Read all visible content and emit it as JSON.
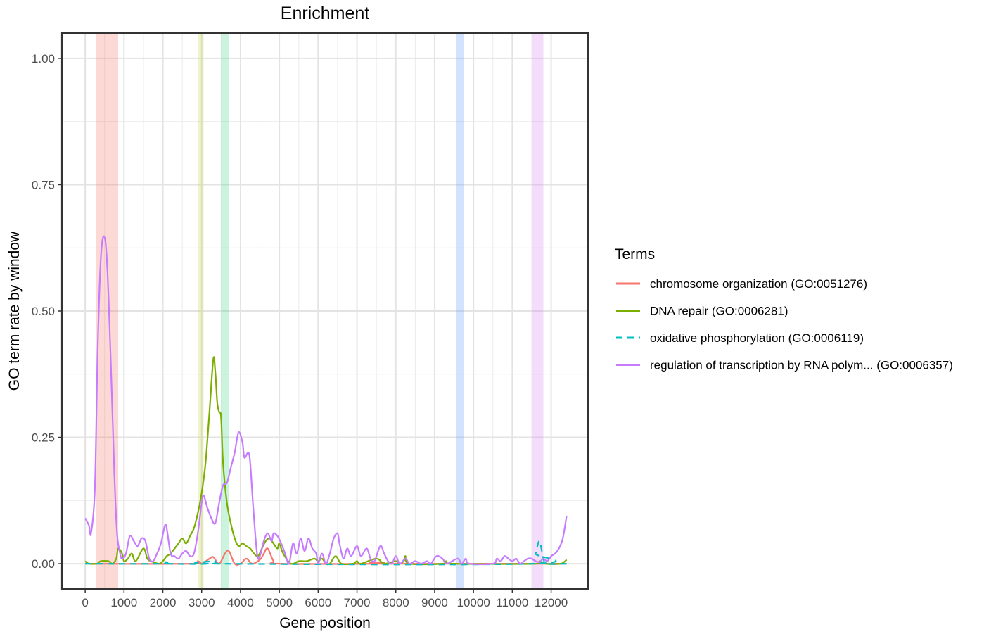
{
  "chart_data": {
    "type": "line",
    "title": "Enrichment",
    "xlabel": "Gene position",
    "ylabel": "GO term rate by window",
    "xlim": [
      -600,
      12950
    ],
    "ylim": [
      -0.05,
      1.05
    ],
    "x_ticks": [
      0,
      1000,
      2000,
      3000,
      4000,
      5000,
      6000,
      7000,
      8000,
      9000,
      10000,
      11000,
      12000
    ],
    "x_tick_labels": [
      "0",
      "1000",
      "2000",
      "3000",
      "4000",
      "5000",
      "6000",
      "7000",
      "8000",
      "9000",
      "10000",
      "11000",
      "12000"
    ],
    "y_ticks": [
      0,
      0.25,
      0.5,
      0.75,
      1.0
    ],
    "y_tick_labels": [
      "0.00",
      "0.25",
      "0.50",
      "0.75",
      "1.00"
    ],
    "grid": true,
    "legend": {
      "title": "Terms",
      "position": "right"
    },
    "highlight_bands": [
      {
        "x0": 280,
        "x1": 850,
        "color": "#f8766d"
      },
      {
        "x0": 2900,
        "x1": 3050,
        "color": "#c6d94a"
      },
      {
        "x0": 3500,
        "x1": 3700,
        "color": "#3fd98a"
      },
      {
        "x0": 9550,
        "x1": 9750,
        "color": "#619cff"
      },
      {
        "x0": 11500,
        "x1": 11800,
        "color": "#d986f0"
      }
    ],
    "series": [
      {
        "name": "chromosome organization (GO:0051276)",
        "color": "#f8766d",
        "dashed": false,
        "points": [
          [
            0,
            0
          ],
          [
            2700,
            0
          ],
          [
            2900,
            0.005
          ],
          [
            3000,
            0
          ],
          [
            3200,
            0.01
          ],
          [
            3300,
            0.013
          ],
          [
            3450,
            0
          ],
          [
            3600,
            0.02
          ],
          [
            3700,
            0.025
          ],
          [
            3850,
            0
          ],
          [
            4000,
            0
          ],
          [
            4150,
            0.01
          ],
          [
            4300,
            0
          ],
          [
            4500,
            0.008
          ],
          [
            4600,
            0.02
          ],
          [
            4700,
            0.03
          ],
          [
            4850,
            0.005
          ],
          [
            5000,
            0
          ],
          [
            7500,
            0
          ],
          [
            7600,
            0.003
          ],
          [
            7700,
            0
          ],
          [
            12400,
            0
          ]
        ]
      },
      {
        "name": "DNA repair (GO:0006281)",
        "color": "#7cae00",
        "dashed": false,
        "points": [
          [
            0,
            0.005
          ],
          [
            100,
            0
          ],
          [
            300,
            0
          ],
          [
            400,
            0.005
          ],
          [
            600,
            0.005
          ],
          [
            700,
            0
          ],
          [
            800,
            0.01
          ],
          [
            850,
            0.03
          ],
          [
            950,
            0.02
          ],
          [
            1000,
            0.005
          ],
          [
            1100,
            0.01
          ],
          [
            1200,
            0.02
          ],
          [
            1300,
            0.005
          ],
          [
            1500,
            0.03
          ],
          [
            1600,
            0.01
          ],
          [
            1700,
            0.005
          ],
          [
            1900,
            0
          ],
          [
            2000,
            0.005
          ],
          [
            2100,
            0.015
          ],
          [
            2200,
            0.02
          ],
          [
            2400,
            0.04
          ],
          [
            2500,
            0.05
          ],
          [
            2600,
            0.04
          ],
          [
            2700,
            0.055
          ],
          [
            2800,
            0.07
          ],
          [
            2900,
            0.1
          ],
          [
            3000,
            0.14
          ],
          [
            3100,
            0.2
          ],
          [
            3200,
            0.3
          ],
          [
            3300,
            0.405
          ],
          [
            3350,
            0.38
          ],
          [
            3400,
            0.32
          ],
          [
            3450,
            0.3
          ],
          [
            3500,
            0.29
          ],
          [
            3550,
            0.2
          ],
          [
            3650,
            0.12
          ],
          [
            3750,
            0.08
          ],
          [
            3850,
            0.05
          ],
          [
            3950,
            0.035
          ],
          [
            4050,
            0.04
          ],
          [
            4150,
            0.035
          ],
          [
            4250,
            0.03
          ],
          [
            4350,
            0.02
          ],
          [
            4450,
            0.015
          ],
          [
            4550,
            0.03
          ],
          [
            4650,
            0.045
          ],
          [
            4750,
            0.05
          ],
          [
            4850,
            0.04
          ],
          [
            4950,
            0.03
          ],
          [
            5000,
            0.04
          ],
          [
            5100,
            0.02
          ],
          [
            5300,
            0
          ],
          [
            5500,
            0.005
          ],
          [
            5700,
            0.005
          ],
          [
            5900,
            0.01
          ],
          [
            6000,
            0.005
          ],
          [
            6100,
            0.01
          ],
          [
            6200,
            0
          ],
          [
            6300,
            0
          ],
          [
            6450,
            0.015
          ],
          [
            6600,
            0
          ],
          [
            6900,
            0
          ],
          [
            7000,
            0.005
          ],
          [
            7100,
            0
          ],
          [
            7500,
            0.01
          ],
          [
            7700,
            0
          ],
          [
            8000,
            0.005
          ],
          [
            8100,
            0
          ],
          [
            8200,
            0.005
          ],
          [
            8250,
            0.015
          ],
          [
            8350,
            0
          ],
          [
            9200,
            0
          ],
          [
            9300,
            0.005
          ],
          [
            9500,
            0
          ],
          [
            11600,
            0
          ],
          [
            11700,
            0.005
          ],
          [
            11850,
            0
          ],
          [
            12250,
            0
          ],
          [
            12400,
            0.008
          ]
        ]
      },
      {
        "name": "oxidative phosphorylation (GO:0006119)",
        "color": "#00bfc4",
        "dashed": true,
        "points": [
          [
            0,
            0
          ],
          [
            1950,
            0
          ],
          [
            2050,
            0.004
          ],
          [
            2150,
            0
          ],
          [
            3250,
            0
          ],
          [
            3350,
            0.005
          ],
          [
            3450,
            0
          ],
          [
            11500,
            0
          ],
          [
            11600,
            0.02
          ],
          [
            11700,
            0.045
          ],
          [
            11800,
            0.01
          ],
          [
            11900,
            0
          ],
          [
            12400,
            0
          ]
        ]
      },
      {
        "name": "regulation of transcription by RNA polym... (GO:0006357)",
        "color": "#c77cff",
        "dashed": false,
        "points": [
          [
            0,
            0.09
          ],
          [
            100,
            0.075
          ],
          [
            150,
            0.06
          ],
          [
            250,
            0.15
          ],
          [
            320,
            0.42
          ],
          [
            400,
            0.6
          ],
          [
            480,
            0.648
          ],
          [
            560,
            0.6
          ],
          [
            650,
            0.42
          ],
          [
            750,
            0.18
          ],
          [
            820,
            0.06
          ],
          [
            900,
            0.02
          ],
          [
            950,
            0.01
          ],
          [
            1050,
            0.02
          ],
          [
            1150,
            0.055
          ],
          [
            1250,
            0.045
          ],
          [
            1350,
            0.035
          ],
          [
            1450,
            0.05
          ],
          [
            1550,
            0.045
          ],
          [
            1650,
            0.01
          ],
          [
            1750,
            0.005
          ],
          [
            1850,
            0.02
          ],
          [
            1950,
            0.04
          ],
          [
            2050,
            0.075
          ],
          [
            2100,
            0.07
          ],
          [
            2200,
            0.02
          ],
          [
            2300,
            0.015
          ],
          [
            2400,
            0.01
          ],
          [
            2500,
            0.02
          ],
          [
            2600,
            0.025
          ],
          [
            2700,
            0.015
          ],
          [
            2800,
            0.02
          ],
          [
            2900,
            0.06
          ],
          [
            3000,
            0.12
          ],
          [
            3050,
            0.135
          ],
          [
            3150,
            0.11
          ],
          [
            3250,
            0.09
          ],
          [
            3350,
            0.08
          ],
          [
            3450,
            0.12
          ],
          [
            3550,
            0.155
          ],
          [
            3650,
            0.16
          ],
          [
            3750,
            0.19
          ],
          [
            3850,
            0.22
          ],
          [
            3950,
            0.26
          ],
          [
            4050,
            0.24
          ],
          [
            4100,
            0.21
          ],
          [
            4200,
            0.22
          ],
          [
            4250,
            0.2
          ],
          [
            4320,
            0.12
          ],
          [
            4400,
            0.04
          ],
          [
            4450,
            0.01
          ],
          [
            4520,
            0.02
          ],
          [
            4600,
            0.045
          ],
          [
            4700,
            0.06
          ],
          [
            4800,
            0.045
          ],
          [
            4850,
            0.06
          ],
          [
            4950,
            0.055
          ],
          [
            5050,
            0.04
          ],
          [
            5150,
            0.02
          ],
          [
            5250,
            0
          ],
          [
            5350,
            0.04
          ],
          [
            5450,
            0.02
          ],
          [
            5550,
            0.05
          ],
          [
            5650,
            0.025
          ],
          [
            5750,
            0.05
          ],
          [
            5850,
            0.03
          ],
          [
            5950,
            0.02
          ],
          [
            6000,
            0
          ],
          [
            6100,
            0.02
          ],
          [
            6200,
            0
          ],
          [
            6300,
            0.02
          ],
          [
            6400,
            0.05
          ],
          [
            6500,
            0.06
          ],
          [
            6550,
            0.04
          ],
          [
            6650,
            0.01
          ],
          [
            6750,
            0.03
          ],
          [
            6850,
            0.015
          ],
          [
            7000,
            0.035
          ],
          [
            7100,
            0.015
          ],
          [
            7250,
            0.03
          ],
          [
            7350,
            0.01
          ],
          [
            7450,
            0.005
          ],
          [
            7600,
            0.035
          ],
          [
            7700,
            0.02
          ],
          [
            7800,
            0.005
          ],
          [
            7900,
            0
          ],
          [
            8000,
            0.015
          ],
          [
            8100,
            0
          ],
          [
            8250,
            0.01
          ],
          [
            8350,
            0
          ],
          [
            8500,
            0.005
          ],
          [
            8650,
            0
          ],
          [
            8800,
            0.005
          ],
          [
            8900,
            0
          ],
          [
            9050,
            0.015
          ],
          [
            9200,
            0.01
          ],
          [
            9300,
            0
          ],
          [
            9450,
            0.005
          ],
          [
            9600,
            0.01
          ],
          [
            9700,
            0
          ],
          [
            9800,
            0.01
          ],
          [
            9900,
            0
          ],
          [
            10500,
            0
          ],
          [
            10600,
            0.01
          ],
          [
            10700,
            0.005
          ],
          [
            10800,
            0.015
          ],
          [
            10900,
            0.01
          ],
          [
            11000,
            0.005
          ],
          [
            11100,
            0.01
          ],
          [
            11200,
            0
          ],
          [
            11300,
            0.005
          ],
          [
            11400,
            0.01
          ],
          [
            11500,
            0.01
          ],
          [
            11600,
            0.005
          ],
          [
            11700,
            0.003
          ],
          [
            11800,
            0.01
          ],
          [
            11900,
            0.005
          ],
          [
            12000,
            0.015
          ],
          [
            12100,
            0.02
          ],
          [
            12200,
            0.03
          ],
          [
            12300,
            0.05
          ],
          [
            12400,
            0.095
          ]
        ]
      }
    ]
  }
}
